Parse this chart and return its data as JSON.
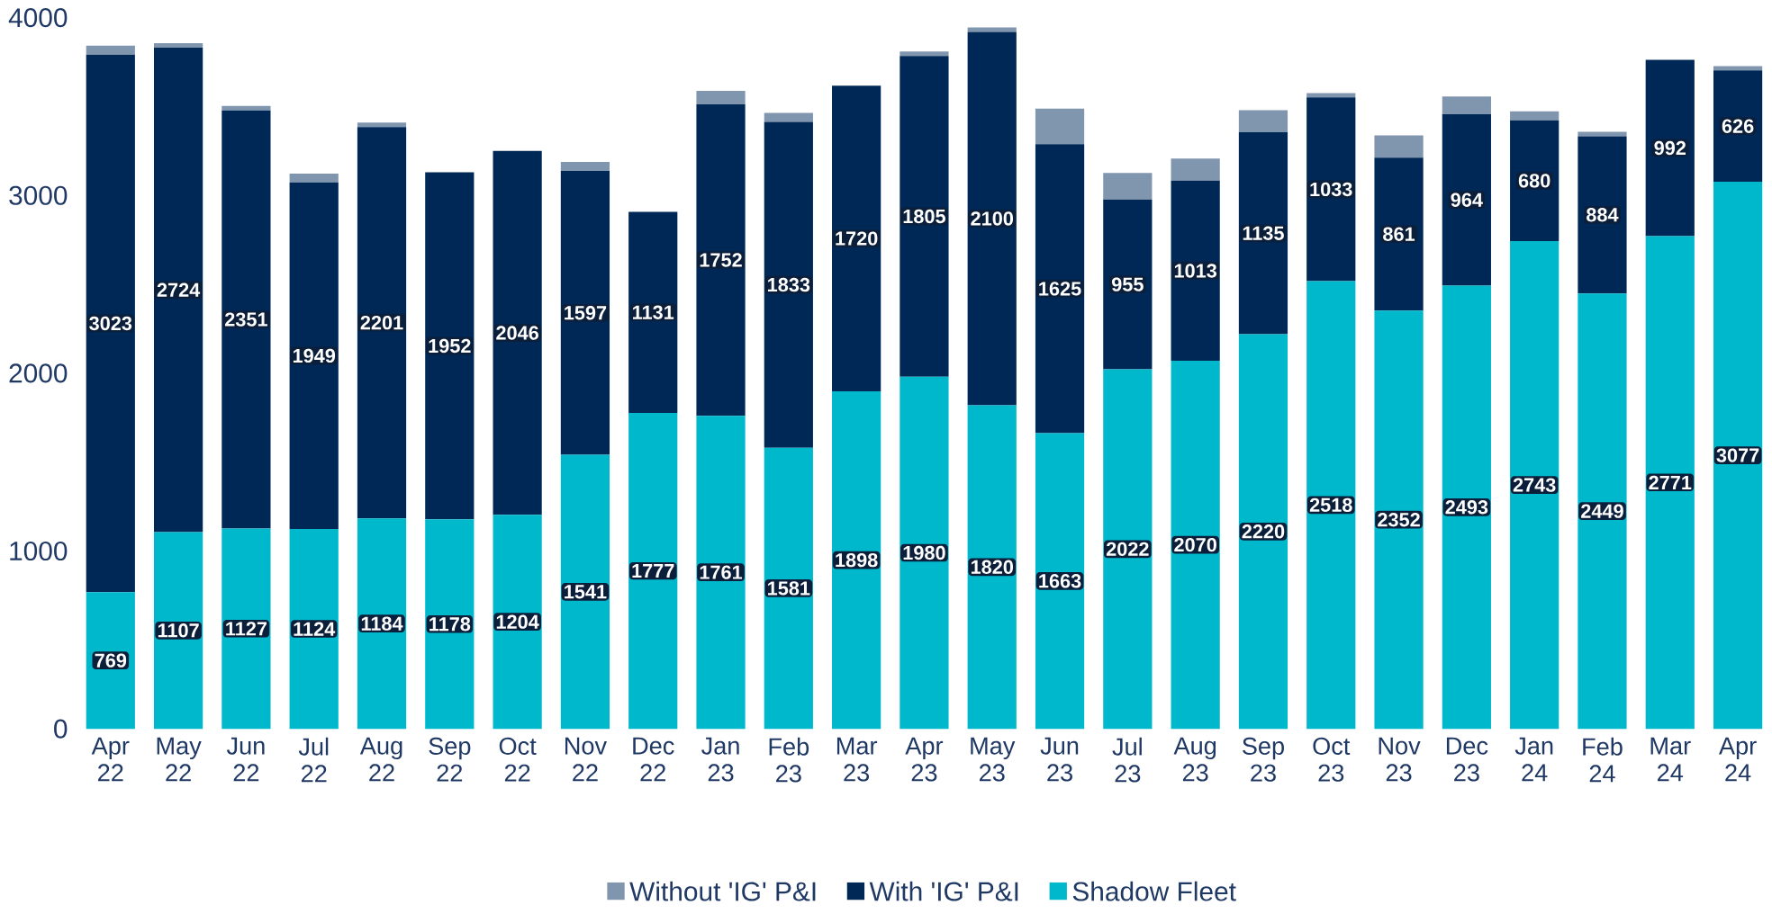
{
  "chart_data": {
    "type": "bar",
    "stacked": true,
    "categories": [
      "Apr\n22",
      "May\n22",
      "Jun\n22",
      "Jul\n22",
      "Aug\n22",
      "Sep\n22",
      "Oct\n22",
      "Nov\n22",
      "Dec\n22",
      "Jan\n23",
      "Feb\n23",
      "Mar\n23",
      "Apr\n23",
      "May\n23",
      "Jun\n23",
      "Jul\n23",
      "Aug\n23",
      "Sep\n23",
      "Oct\n23",
      "Nov\n23",
      "Dec\n23",
      "Jan\n24",
      "Feb\n24",
      "Mar\n24",
      "Apr\n24"
    ],
    "series": [
      {
        "name": "Shadow Fleet",
        "color": "#00b8cc",
        "values": [
          769,
          1107,
          1127,
          1124,
          1184,
          1178,
          1204,
          1541,
          1777,
          1761,
          1581,
          1898,
          1980,
          1820,
          1663,
          2022,
          2070,
          2220,
          2518,
          2352,
          2493,
          2743,
          2449,
          2771,
          3077
        ],
        "value_labels": [
          "769",
          "1107",
          "1127",
          "1124",
          "1184",
          "1178",
          "1204",
          "1541",
          "1777",
          "1761",
          "1581",
          "1898",
          "1980",
          "1820",
          "1663",
          "2022",
          "2070",
          "2220",
          "2518",
          "2352",
          "2493",
          "2743",
          "2449",
          "2771",
          "3077"
        ]
      },
      {
        "name": "With 'IG' P&I",
        "color": "#002856",
        "values": [
          3023,
          2724,
          2351,
          1949,
          2201,
          1952,
          2046,
          1597,
          1131,
          1752,
          1833,
          1720,
          1805,
          2100,
          1625,
          955,
          1013,
          1135,
          1033,
          861,
          964,
          680,
          884,
          992,
          626
        ],
        "value_labels": [
          "3023",
          "2724",
          "2351",
          "1949",
          "2201",
          "1952",
          "2046",
          "1597",
          "1131",
          "1752",
          "1833",
          "1720",
          "1805",
          "2100",
          "1625",
          "955",
          "1013",
          "1135",
          "1033",
          "861",
          "964",
          "680",
          "884",
          "992",
          "626"
        ]
      },
      {
        "name": "Without 'IG' P&I",
        "color": "#8096ae",
        "values": [
          50,
          25,
          25,
          50,
          25,
          0,
          0,
          50,
          0,
          75,
          50,
          0,
          25,
          25,
          200,
          150,
          125,
          125,
          25,
          125,
          100,
          50,
          25,
          0,
          25
        ]
      }
    ],
    "ylim": [
      0,
      4000
    ],
    "yticks": [
      0,
      1000,
      2000,
      3000,
      4000
    ],
    "grid": false,
    "legend": "bottom"
  }
}
